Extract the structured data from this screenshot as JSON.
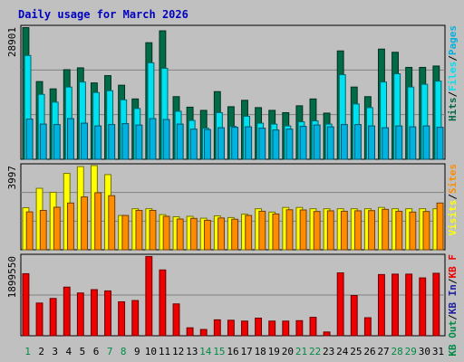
{
  "colors": {
    "background": "#c0c0c0",
    "hits": "#006b46",
    "files": "#00e1f0",
    "pages": "#00b2e0",
    "visits": "#ffff00",
    "sites": "#ff8c00",
    "kbout": "#008b45",
    "kbin": "#2020a0",
    "kbf": "#ee0000",
    "title": "#0000c0",
    "axis_label": "#000000"
  },
  "chart_data": [
    {
      "type": "bar",
      "title": "Daily usage for March 2026",
      "categories": [
        "1",
        "2",
        "3",
        "4",
        "5",
        "6",
        "7",
        "8",
        "9",
        "10",
        "11",
        "12",
        "13",
        "14",
        "15",
        "16",
        "17",
        "18",
        "19",
        "20",
        "21",
        "22",
        "23",
        "24",
        "25",
        "26",
        "27",
        "28",
        "29",
        "30",
        "31"
      ],
      "weekend_days": [
        "1",
        "7",
        "8",
        "14",
        "15",
        "21",
        "22",
        "28",
        "29"
      ],
      "ylabel_parts": [
        "Pages",
        "Files",
        "Hits"
      ],
      "ymax_label": "28901",
      "ylim": [
        0,
        28901
      ],
      "grid": true,
      "series": [
        {
          "name": "Hits",
          "values": [
            28800,
            17000,
            15400,
            19600,
            20000,
            16700,
            18300,
            16200,
            13200,
            25500,
            28100,
            13700,
            11400,
            10700,
            14800,
            11500,
            12900,
            11300,
            10700,
            10200,
            11700,
            13200,
            10100,
            23700,
            15800,
            13700,
            24100,
            23400,
            20100,
            20100,
            20400
          ]
        },
        {
          "name": "Files",
          "values": [
            22700,
            14200,
            12500,
            15800,
            16900,
            14600,
            15000,
            13000,
            11100,
            21100,
            19900,
            10500,
            8500,
            6800,
            10200,
            7200,
            9400,
            7900,
            7700,
            7300,
            8200,
            8400,
            7700,
            18500,
            12100,
            11300,
            16900,
            18700,
            15800,
            16400,
            17100
          ]
        },
        {
          "name": "Pages",
          "values": [
            8800,
            7700,
            7600,
            8900,
            7900,
            7300,
            7600,
            7800,
            7500,
            8900,
            8700,
            7700,
            6600,
            6500,
            6900,
            7000,
            7100,
            6800,
            6400,
            6600,
            7200,
            7500,
            7100,
            7600,
            7600,
            7300,
            6900,
            7300,
            7100,
            7300,
            7000
          ]
        }
      ]
    },
    {
      "type": "bar",
      "categories": [
        "1",
        "2",
        "3",
        "4",
        "5",
        "6",
        "7",
        "8",
        "9",
        "10",
        "11",
        "12",
        "13",
        "14",
        "15",
        "16",
        "17",
        "18",
        "19",
        "20",
        "21",
        "22",
        "23",
        "24",
        "25",
        "26",
        "27",
        "28",
        "29",
        "30",
        "31"
      ],
      "ylabel_parts": [
        "Sites",
        "Visits"
      ],
      "ymax_label": "3997",
      "ylim": [
        0,
        3997
      ],
      "grid": true,
      "series": [
        {
          "name": "Visits",
          "values": [
            2000,
            2920,
            2730,
            3630,
            3950,
            4000,
            3570,
            1630,
            1950,
            1950,
            1670,
            1570,
            1590,
            1500,
            1610,
            1530,
            1690,
            1950,
            1790,
            2010,
            2010,
            1950,
            1950,
            1950,
            1950,
            1950,
            2010,
            1950,
            1950,
            1950,
            1950
          ]
        },
        {
          "name": "Sites",
          "values": [
            1800,
            1870,
            2020,
            2220,
            2510,
            2710,
            2570,
            1630,
            1870,
            1870,
            1590,
            1460,
            1490,
            1400,
            1510,
            1450,
            1630,
            1830,
            1700,
            1900,
            1890,
            1820,
            1850,
            1830,
            1850,
            1860,
            1920,
            1830,
            1790,
            1820,
            2220
          ]
        }
      ]
    },
    {
      "type": "bar",
      "categories": [
        "1",
        "2",
        "3",
        "4",
        "5",
        "6",
        "7",
        "8",
        "9",
        "10",
        "11",
        "12",
        "13",
        "14",
        "15",
        "16",
        "17",
        "18",
        "19",
        "20",
        "21",
        "22",
        "23",
        "24",
        "25",
        "26",
        "27",
        "28",
        "29",
        "30",
        "31"
      ],
      "ylabel_parts": [
        "KB F",
        "KB In",
        "KB Out"
      ],
      "ymax_label": "1899550",
      "ylim": [
        0,
        1899550
      ],
      "grid": true,
      "series": [
        {
          "name": "KB F",
          "values": [
            1480000,
            780000,
            890000,
            1160000,
            1020000,
            1100000,
            1070000,
            810000,
            840000,
            1890000,
            1570000,
            760000,
            190000,
            150000,
            380000,
            370000,
            350000,
            420000,
            350000,
            350000,
            360000,
            440000,
            90000,
            1500000,
            960000,
            430000,
            1460000,
            1470000,
            1470000,
            1380000,
            1490000
          ]
        }
      ]
    }
  ]
}
